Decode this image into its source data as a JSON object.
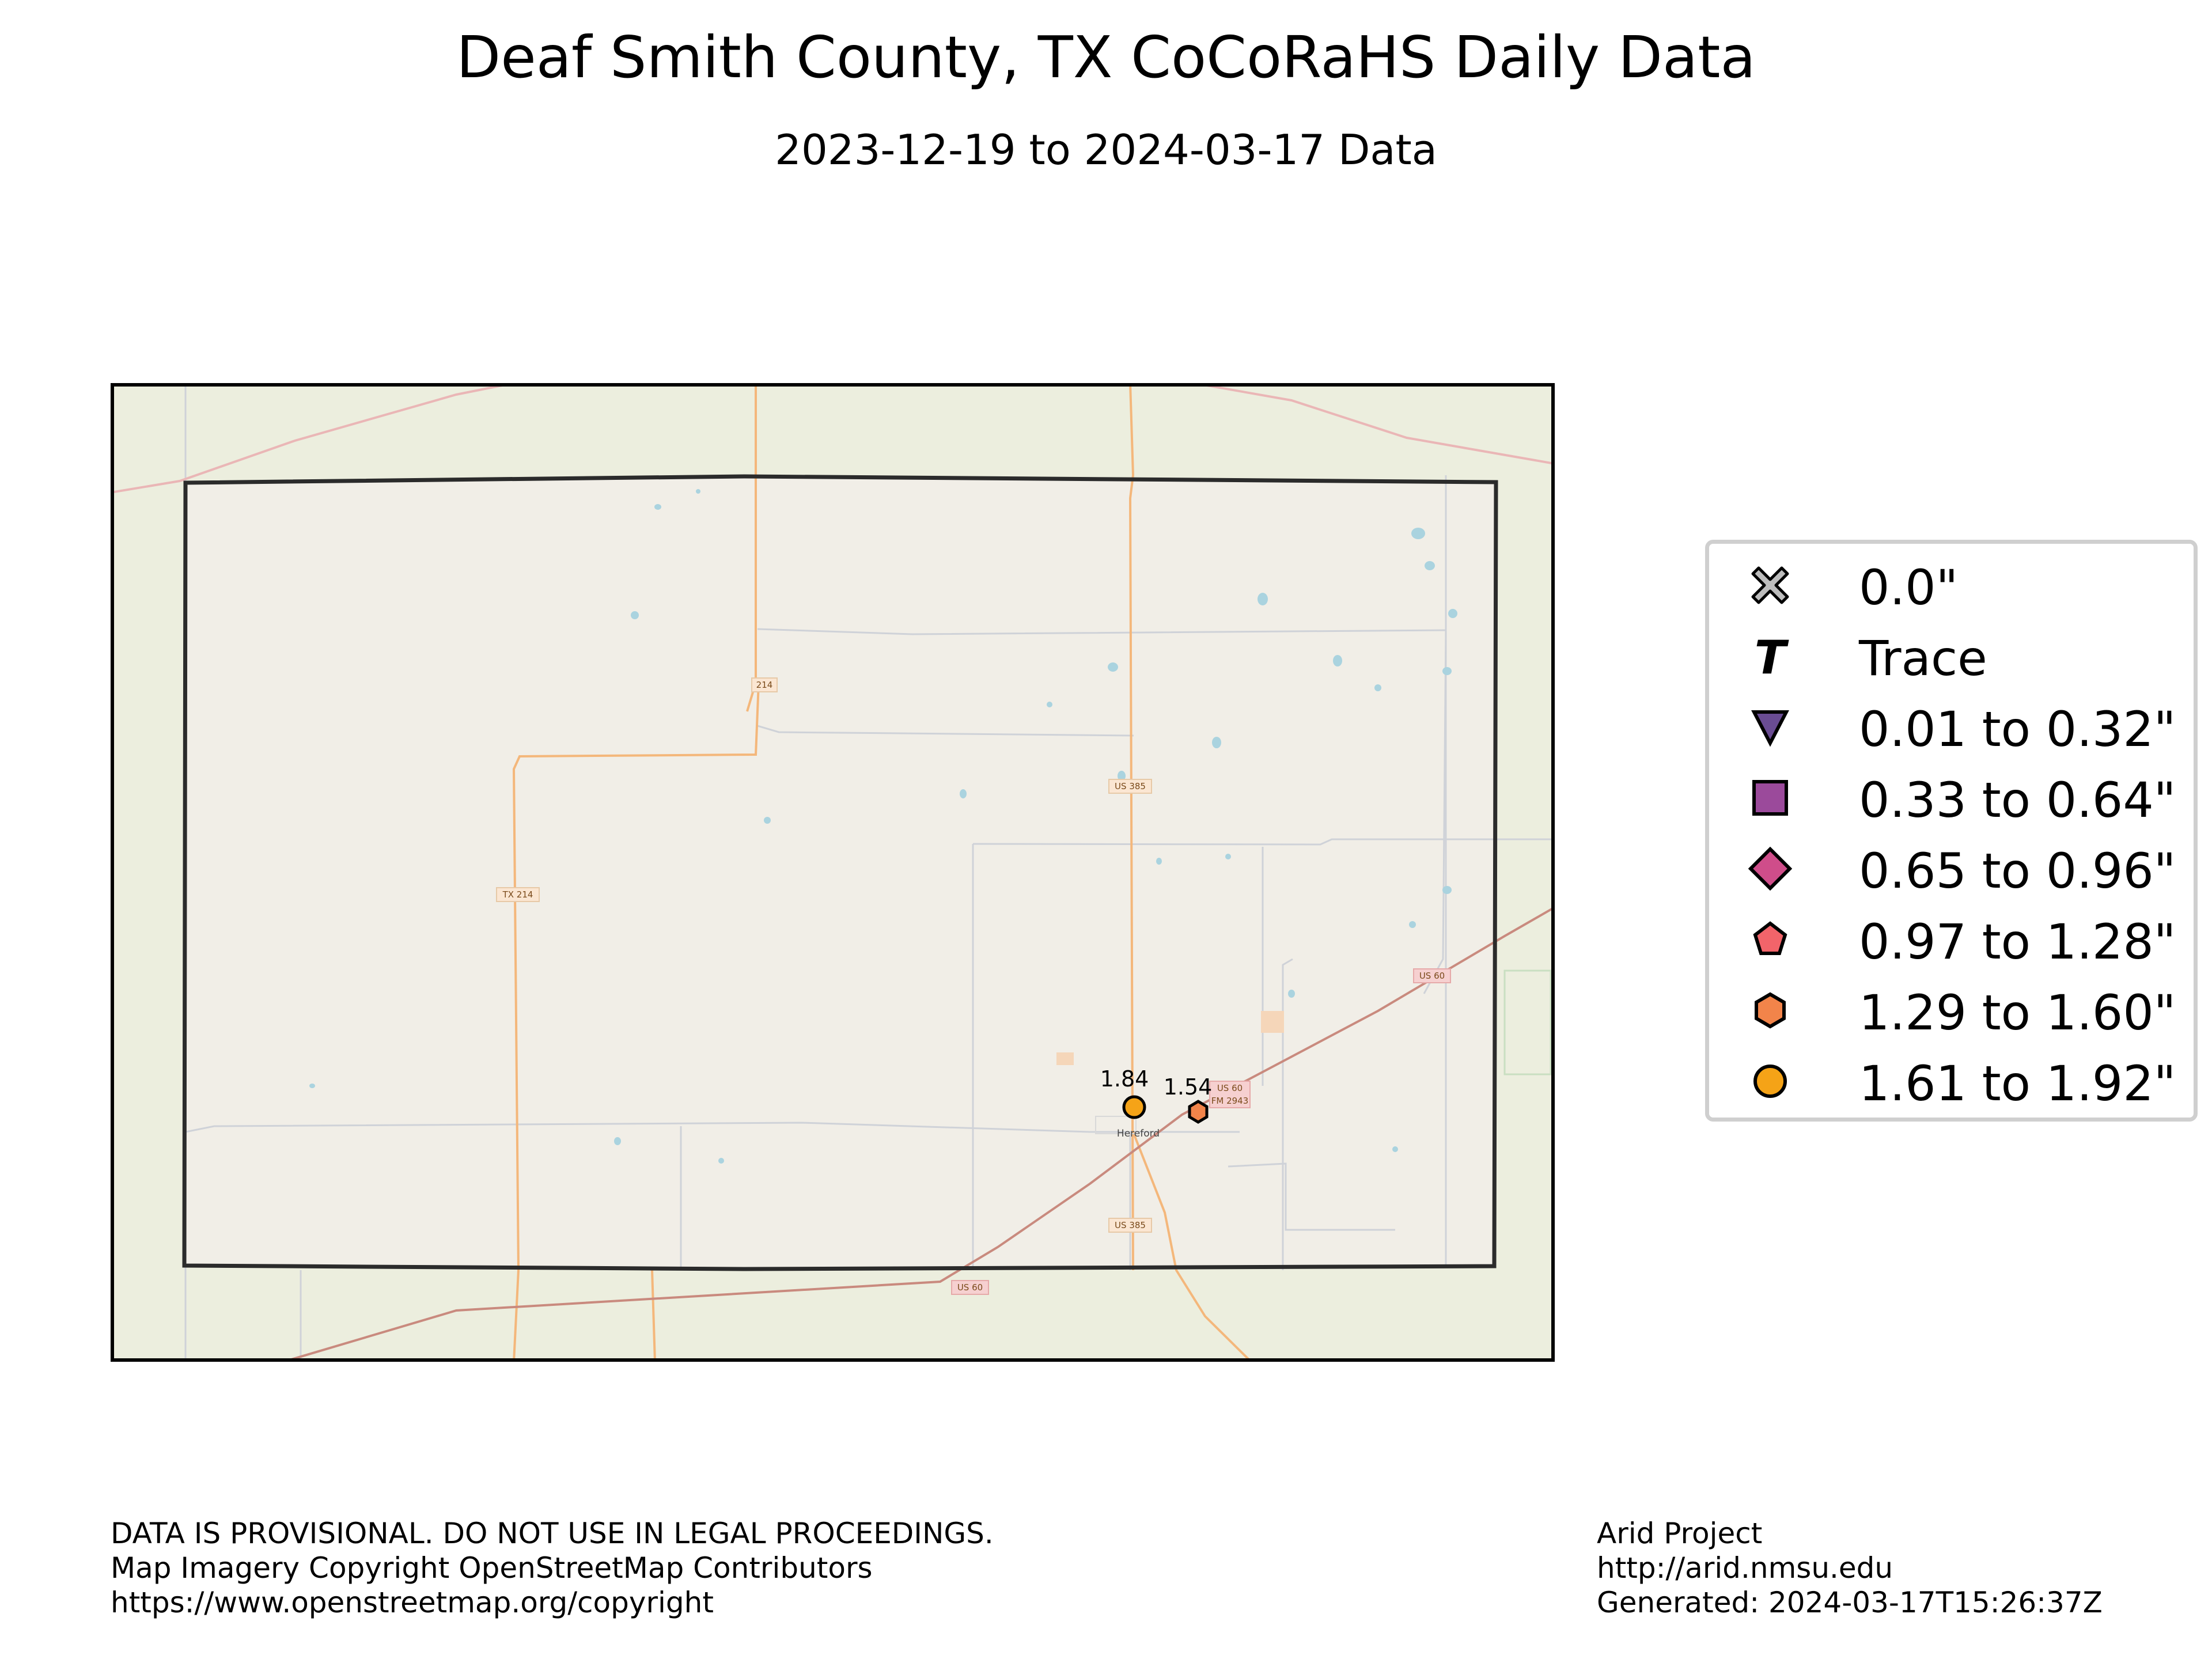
{
  "title": "Deaf Smith County, TX CoCoRaHS Daily Data",
  "subtitle": "2023-12-19 to 2024-03-17 Data",
  "map": {
    "place_label": "Hereford",
    "road_labels": [
      "US 385",
      "US 385",
      "TX 214",
      "214",
      "US 60",
      "US 60",
      "US 60",
      "FM 2943"
    ],
    "stations": [
      {
        "value": "1.84",
        "category": "1.61 to 1.92\"",
        "shape": "circle",
        "color": "#f5a317"
      },
      {
        "value": "1.54",
        "category": "1.29 to 1.60\"",
        "shape": "hexagon",
        "color": "#f2844a"
      }
    ]
  },
  "legend": {
    "items": [
      {
        "label": "0.0\"",
        "shape": "x",
        "color": "#bdbdbd"
      },
      {
        "label": "Trace",
        "shape": "T",
        "color": "#000000"
      },
      {
        "label": "0.01 to 0.32\"",
        "shape": "triangle-down",
        "color": "#6a4c93"
      },
      {
        "label": "0.33 to 0.64\"",
        "shape": "square",
        "color": "#9b4a9b"
      },
      {
        "label": "0.65 to 0.96\"",
        "shape": "diamond",
        "color": "#cf4d8a"
      },
      {
        "label": "0.97 to 1.28\"",
        "shape": "pentagon",
        "color": "#f2646a"
      },
      {
        "label": "1.29 to 1.60\"",
        "shape": "hexagon",
        "color": "#f2844a"
      },
      {
        "label": "1.61 to 1.92\"",
        "shape": "circle",
        "color": "#f5a317"
      }
    ]
  },
  "footer": {
    "left": [
      "DATA IS PROVISIONAL. DO NOT USE IN LEGAL PROCEEDINGS.",
      "Map Imagery Copyright OpenStreetMap Contributors",
      "https://www.openstreetmap.org/copyright"
    ],
    "right": [
      "Arid Project",
      "http://arid.nmsu.edu",
      "Generated: 2024-03-17T15:26:37Z"
    ]
  }
}
